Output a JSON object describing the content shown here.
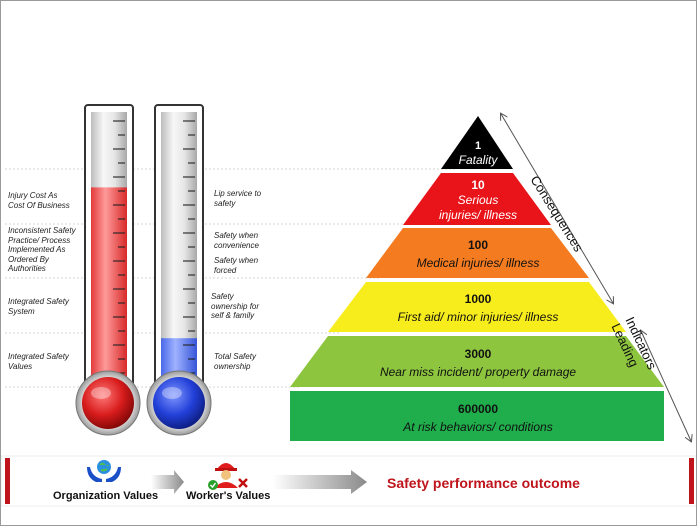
{
  "thermometer_left": {
    "labels": [
      "Injury Cost As\nCost Of Business",
      "Inconsistent Safety\nPractice/ Process\nImplemented As\nOrdered By\nAuthorities",
      "Integrated Safety\nSystem",
      "Integrated Safety\nValues"
    ],
    "fill_fraction": 0.74,
    "color": "#e8222a"
  },
  "thermometer_right": {
    "labels": [
      "Lip service to\nsafety",
      "Safety when\nconvenience",
      "Safety when\nforced",
      "Safety\nownership for\nself & family",
      "Total Safety\nownership"
    ],
    "fill_fraction": 0.22,
    "color": "#2a4fe0"
  },
  "pyramid": {
    "levels": [
      {
        "value": "1",
        "label": "Fatality",
        "color": "#000000",
        "text_color": "#ffffff"
      },
      {
        "value": "10",
        "label": "Serious\ninjuries/ illness",
        "color": "#e8141a",
        "text_color": "#ffffff"
      },
      {
        "value": "100",
        "label": "Medical injuries/ illness",
        "color": "#f47b20",
        "text_color": "#111111"
      },
      {
        "value": "1000",
        "label": "First aid/ minor injuries/ illness",
        "color": "#f8ed1c",
        "text_color": "#111111"
      },
      {
        "value": "3000",
        "label": "Near miss incident/ property damage",
        "color": "#8dc53e",
        "text_color": "#111111"
      },
      {
        "value": "600000",
        "label": "At risk behaviors/ conditions",
        "color": "#1fae4b",
        "text_color": "#111111"
      }
    ],
    "side_labels": {
      "consequences": "Consequences",
      "leading_indicators": "Leading\nIndicators"
    }
  },
  "bottom_bar": {
    "organization_values": "Organization Values",
    "workers_values": "Worker's Values",
    "outcome": "Safety performance outcome",
    "accent_color": "#c0141c"
  }
}
